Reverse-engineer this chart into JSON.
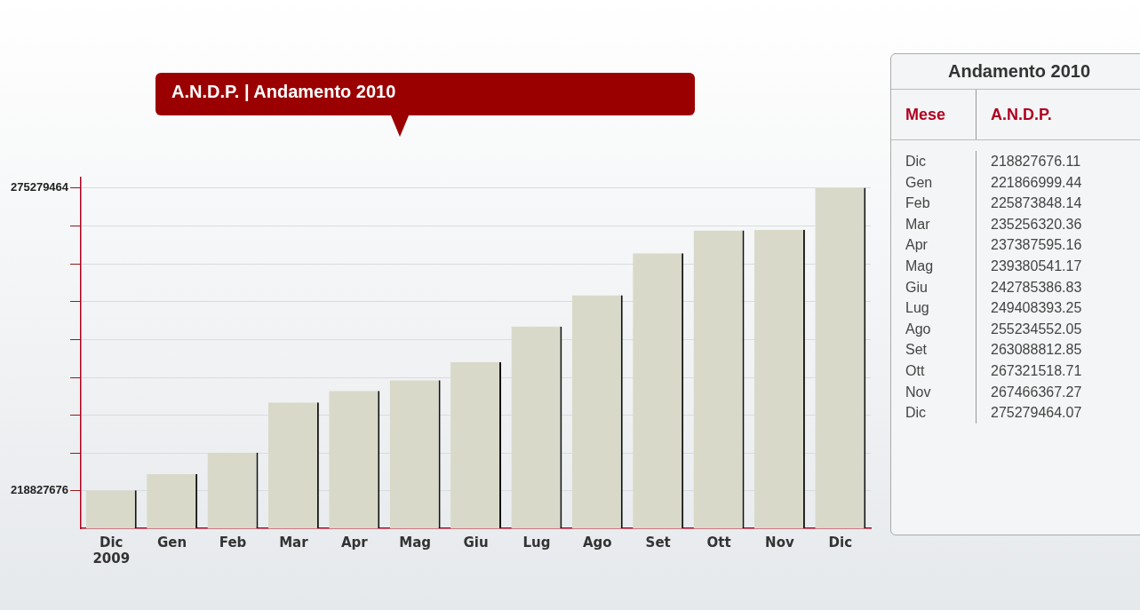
{
  "chart_data": [
    {
      "type": "bar",
      "title": "A.N.D.P. | Andamento  2010",
      "categories": [
        "Dic 2009",
        "Gen",
        "Feb",
        "Mar",
        "Apr",
        "Mag",
        "Giu",
        "Lug",
        "Ago",
        "Set",
        "Ott",
        "Nov",
        "Dic"
      ],
      "values": [
        218827676.11,
        221866999.44,
        225873848.14,
        235256320.36,
        237387595.16,
        239380541.17,
        242785386.83,
        249408393.25,
        255234552.05,
        263088812.85,
        267321518.71,
        267466367.27,
        275279464.07
      ],
      "color": "#d9d9c9",
      "ylim": [
        211750000,
        277200000
      ],
      "yticks": [
        {
          "value": 218827676,
          "label": "218827676"
        },
        {
          "value": 225743516,
          "label": null
        },
        {
          "value": 232820080,
          "label": null
        },
        {
          "value": 239896644,
          "label": null
        },
        {
          "value": 246973208,
          "label": null
        },
        {
          "value": 254049772,
          "label": null
        },
        {
          "value": 261126336,
          "label": null
        },
        {
          "value": 268202900,
          "label": null
        },
        {
          "value": 275279464,
          "label": "275279464"
        }
      ],
      "grid": "y"
    },
    {
      "type": "other",
      "title": "Andamento 2010",
      "xlabel": "Mese",
      "ylabel": "A.N.D.P.",
      "categories": [
        "Dic",
        "Gen",
        "Feb",
        "Mar",
        "Apr",
        "Mag",
        "Giu",
        "Lug",
        "Ago",
        "Set",
        "Ott",
        "Nov",
        "Dic"
      ],
      "values": [
        218827676.11,
        221866999.44,
        225873848.14,
        235256320.36,
        237387595.16,
        239380541.17,
        242785386.83,
        249408393.25,
        255234552.05,
        263088812.85,
        267321518.71,
        267466367.27,
        275279464.07
      ],
      "data_labels": true
    }
  ]
}
